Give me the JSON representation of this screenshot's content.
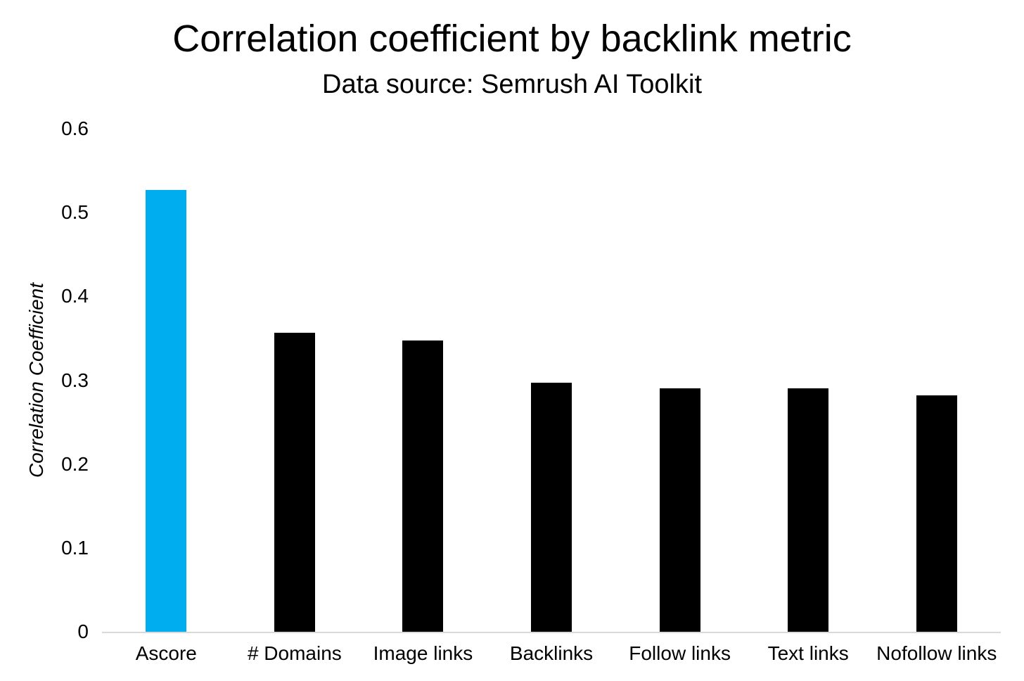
{
  "chart_data": {
    "type": "bar",
    "title": "Correlation coefficient by backlink metric",
    "subtitle": "Data source: Semrush AI Toolkit",
    "xlabel": "",
    "ylabel": "Correlation Coefficient",
    "categories": [
      "Ascore",
      "# Domains",
      "Image links",
      "Backlinks",
      "Follow links",
      "Text links",
      "Nofollow links"
    ],
    "values": [
      0.527,
      0.357,
      0.347,
      0.297,
      0.29,
      0.29,
      0.282
    ],
    "bar_colors": [
      "#00aeef",
      "#000000",
      "#000000",
      "#000000",
      "#000000",
      "#000000",
      "#000000"
    ],
    "ylim": [
      0,
      0.6
    ],
    "yticks": [
      "0",
      "0.1",
      "0.2",
      "0.3",
      "0.4",
      "0.5",
      "0.6"
    ],
    "grid": false,
    "legend": false,
    "colors": {
      "highlight": "#00aeef",
      "default_bar": "#000000",
      "axis_line": "#d9d9d9",
      "text": "#000000",
      "background": "#ffffff"
    }
  }
}
